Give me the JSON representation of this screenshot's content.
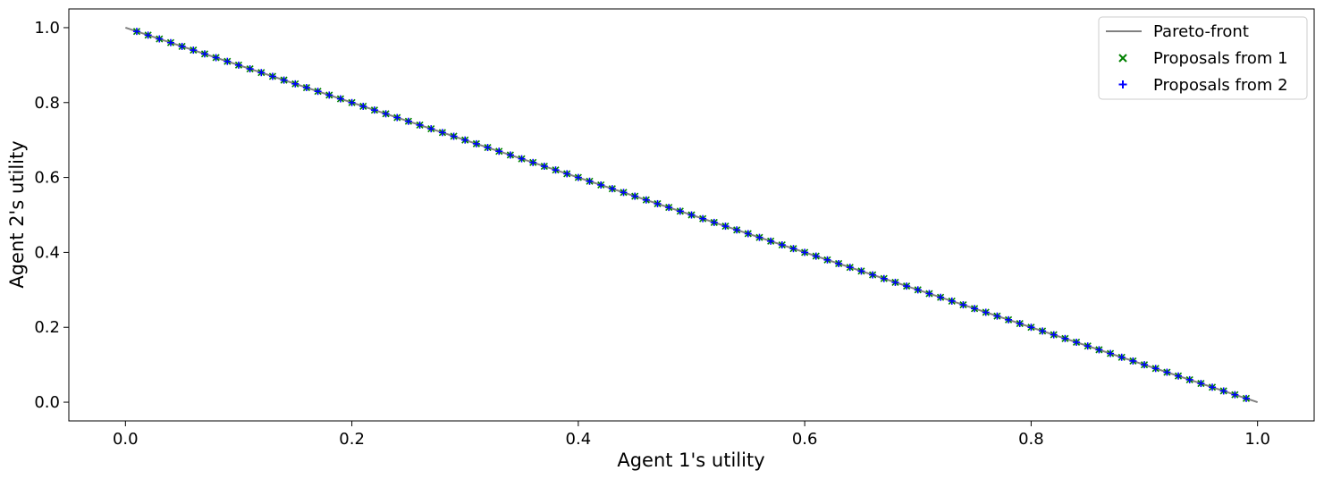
{
  "chart_data": {
    "type": "scatter",
    "xlabel": "Agent 1's utility",
    "ylabel": "Agent 2's utility",
    "xlim": [
      -0.05,
      1.05
    ],
    "ylim": [
      -0.05,
      1.05
    ],
    "xticks": [
      "0.0",
      "0.2",
      "0.4",
      "0.6",
      "0.8",
      "1.0"
    ],
    "yticks": [
      "0.0",
      "0.2",
      "0.4",
      "0.6",
      "0.8",
      "1.0"
    ],
    "grid": false,
    "legend_position": "top-right",
    "pareto_front": {
      "name": "Pareto-front",
      "color": "#808080",
      "x": [
        0.0,
        1.0
      ],
      "y": [
        1.0,
        0.0
      ]
    },
    "series": [
      {
        "name": "Proposals from 1",
        "marker": "x",
        "color": "#008000",
        "x_start": 0.01,
        "x_end": 0.99,
        "step": 0.01,
        "relation": "y = 1 - x"
      },
      {
        "name": "Proposals from 2",
        "marker": "+",
        "color": "#0000ff",
        "x_start": 0.01,
        "x_end": 0.99,
        "step": 0.01,
        "relation": "y = 1 - x"
      }
    ]
  }
}
